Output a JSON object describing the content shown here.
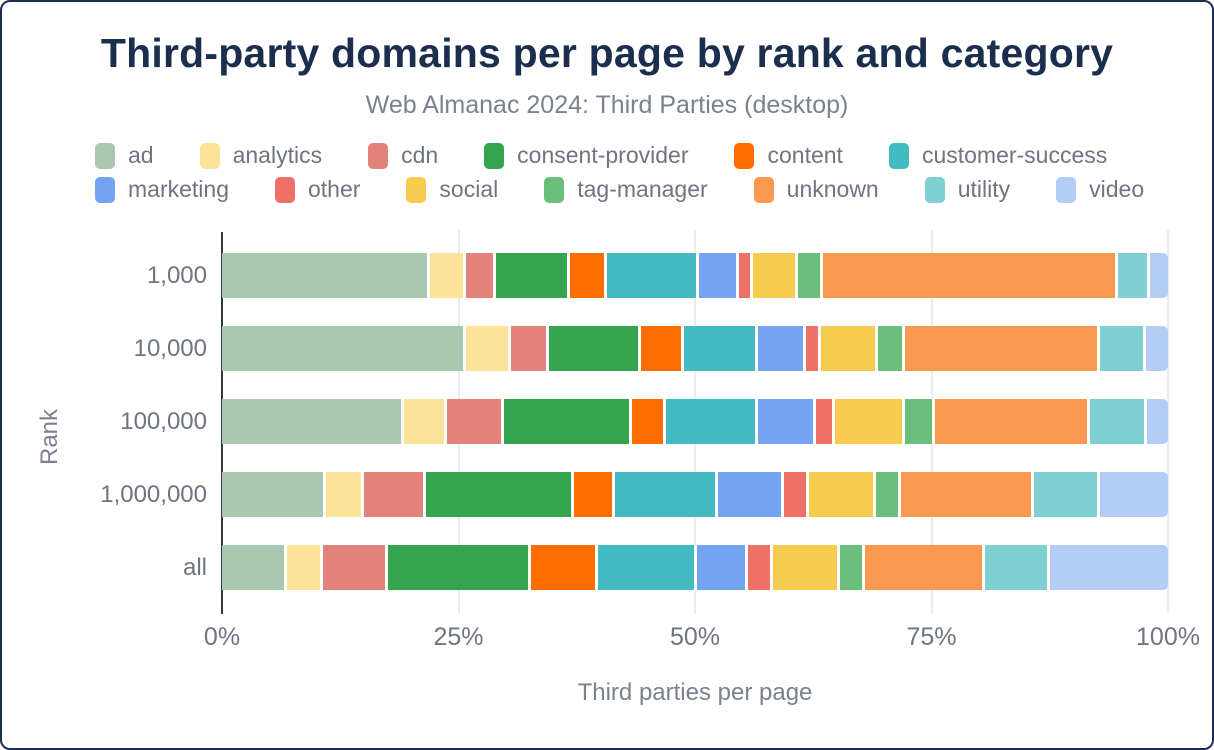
{
  "title": "Third-party domains per page by rank and category",
  "subtitle": "Web Almanac 2024: Third Parties (desktop)",
  "chart_data": {
    "type": "bar",
    "orientation": "horizontal",
    "stacked": true,
    "unit": "%",
    "title": "Third-party domains per page by rank and category",
    "subtitle": "Web Almanac 2024: Third Parties (desktop)",
    "xlabel": "Third parties per page",
    "ylabel": "Rank",
    "xlim": [
      0,
      100
    ],
    "x_ticks": [
      "0%",
      "25%",
      "50%",
      "75%",
      "100%"
    ],
    "grid": true,
    "legend_position": "top",
    "categories": [
      "1,000",
      "10,000",
      "100,000",
      "1,000,000",
      "all"
    ],
    "series": [
      {
        "name": "ad",
        "color": "#a8c8af",
        "values": [
          22.0,
          25.8,
          19.2,
          11.0,
          6.9
        ]
      },
      {
        "name": "analytics",
        "color": "#fce398",
        "values": [
          3.8,
          4.8,
          4.6,
          4.0,
          3.8
        ]
      },
      {
        "name": "cdn",
        "color": "#e2827a",
        "values": [
          3.2,
          4.0,
          6.0,
          6.6,
          6.9
        ]
      },
      {
        "name": "consent-provider",
        "color": "#34a44e",
        "values": [
          7.8,
          9.7,
          13.5,
          15.6,
          15.1
        ]
      },
      {
        "name": "content",
        "color": "#fe6d00",
        "values": [
          3.9,
          4.5,
          3.6,
          4.3,
          7.0
        ]
      },
      {
        "name": "customer-success",
        "color": "#43b9c2",
        "values": [
          9.7,
          7.9,
          9.8,
          10.9,
          10.5
        ]
      },
      {
        "name": "marketing",
        "color": "#74a4f1",
        "values": [
          4.3,
          5.0,
          6.1,
          7.0,
          5.4
        ]
      },
      {
        "name": "other",
        "color": "#ed7166",
        "values": [
          1.4,
          1.6,
          2.0,
          2.7,
          2.7
        ]
      },
      {
        "name": "social",
        "color": "#f7cb4d",
        "values": [
          4.8,
          6.0,
          7.4,
          7.0,
          7.0
        ]
      },
      {
        "name": "tag-manager",
        "color": "#6bbf7c",
        "values": [
          2.6,
          2.9,
          3.2,
          2.7,
          2.7
        ]
      },
      {
        "name": "unknown",
        "color": "#fb9850",
        "values": [
          31.2,
          20.6,
          16.4,
          14.0,
          12.7
        ]
      },
      {
        "name": "utility",
        "color": "#7ed0d2",
        "values": [
          3.4,
          4.9,
          6.0,
          7.0,
          6.8
        ]
      },
      {
        "name": "video",
        "color": "#b3cdf6",
        "values": [
          1.9,
          2.3,
          2.2,
          7.2,
          12.5
        ]
      }
    ]
  },
  "colors": {
    "title": "#1b2e4e",
    "subtitle_text": "#7a828f",
    "axis_text": "#6e7580",
    "gridline": "#ebecf0",
    "axis_line": "#37383a"
  }
}
